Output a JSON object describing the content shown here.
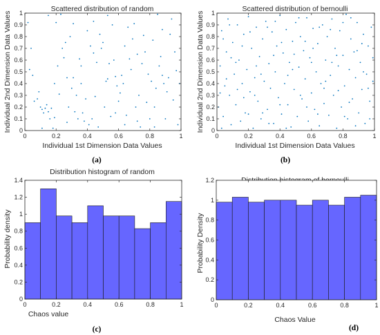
{
  "captions": [
    "(a)",
    "(b)",
    "(c)",
    "(d)"
  ],
  "chart_data": [
    {
      "type": "scatter",
      "title": "Scattered distribution of random",
      "xlabel": "Individual 1st Dimension Data Values",
      "ylabel": "Individual 2nd Dimension Data Values",
      "xlim": [
        0,
        1
      ],
      "ylim": [
        0,
        1
      ],
      "xticks": [
        "0",
        "0.2",
        "0.4",
        "0.6",
        "0.8",
        "1"
      ],
      "yticks": [
        "0",
        "0.1",
        "0.2",
        "0.3",
        "0.4",
        "0.5",
        "0.6",
        "0.7",
        "0.8",
        "0.9",
        "1"
      ],
      "marker_color": "#0072BD",
      "points": [
        [
          0.02,
          0.92
        ],
        [
          0.04,
          0.7
        ],
        [
          0.03,
          0.52
        ],
        [
          0.05,
          0.47
        ],
        [
          0.08,
          0.27
        ],
        [
          0.09,
          0.33
        ],
        [
          0.1,
          0.2
        ],
        [
          0.11,
          0.18
        ],
        [
          0.12,
          0.15
        ],
        [
          0.13,
          0.19
        ],
        [
          0.14,
          0.22
        ],
        [
          0.15,
          0.16
        ],
        [
          0.16,
          0.1
        ],
        [
          0.17,
          0.19
        ],
        [
          0.18,
          0.02
        ],
        [
          0.19,
          0.4
        ],
        [
          0.2,
          0.92
        ],
        [
          0.21,
          0.55
        ],
        [
          0.22,
          0.31
        ],
        [
          0.23,
          0.99
        ],
        [
          0.24,
          0.7
        ],
        [
          0.25,
          0.62
        ],
        [
          0.26,
          0.75
        ],
        [
          0.27,
          0.07
        ],
        [
          0.28,
          0.2
        ],
        [
          0.29,
          0.8
        ],
        [
          0.3,
          0.36
        ],
        [
          0.31,
          0.45
        ],
        [
          0.32,
          0.16
        ],
        [
          0.33,
          0.3
        ],
        [
          0.34,
          0.1
        ],
        [
          0.35,
          0.61
        ],
        [
          0.36,
          0.4
        ],
        [
          0.37,
          0.15
        ],
        [
          0.38,
          0.08
        ],
        [
          0.39,
          0.27
        ],
        [
          0.4,
          0.85
        ],
        [
          0.41,
          0.05
        ],
        [
          0.42,
          0.72
        ],
        [
          0.43,
          0.1
        ],
        [
          0.44,
          0.66
        ],
        [
          0.45,
          0.29
        ],
        [
          0.46,
          0.58
        ],
        [
          0.47,
          0.03
        ],
        [
          0.48,
          0.82
        ],
        [
          0.49,
          0.7
        ],
        [
          0.5,
          0.75
        ],
        [
          0.51,
          0.2
        ],
        [
          0.52,
          0.42
        ],
        [
          0.53,
          0.44
        ],
        [
          0.54,
          0.57
        ],
        [
          0.55,
          0.12
        ],
        [
          0.56,
          0.9
        ],
        [
          0.57,
          0.6
        ],
        [
          0.58,
          0.46
        ],
        [
          0.59,
          0.38
        ],
        [
          0.6,
          0.25
        ],
        [
          0.61,
          0.32
        ],
        [
          0.62,
          0.47
        ],
        [
          0.63,
          0.4
        ],
        [
          0.64,
          0.72
        ],
        [
          0.65,
          0.13
        ],
        [
          0.66,
          0.88
        ],
        [
          0.67,
          0.61
        ],
        [
          0.68,
          0.52
        ],
        [
          0.69,
          0.78
        ],
        [
          0.7,
          0.91
        ],
        [
          0.71,
          0.2
        ],
        [
          0.72,
          0.65
        ],
        [
          0.73,
          0.3
        ],
        [
          0.74,
          0.03
        ],
        [
          0.75,
          0.57
        ],
        [
          0.76,
          0.81
        ],
        [
          0.77,
          0.67
        ],
        [
          0.78,
          0.24
        ],
        [
          0.79,
          0.48
        ],
        [
          0.8,
          0.1
        ],
        [
          0.81,
          0.42
        ],
        [
          0.82,
          0.77
        ],
        [
          0.83,
          0.03
        ],
        [
          0.84,
          0.36
        ],
        [
          0.85,
          0.99
        ],
        [
          0.86,
          0.55
        ],
        [
          0.87,
          0.63
        ],
        [
          0.88,
          0.47
        ],
        [
          0.89,
          0.4
        ],
        [
          0.9,
          0.1
        ],
        [
          0.91,
          0.33
        ],
        [
          0.92,
          0.45
        ],
        [
          0.93,
          0.82
        ],
        [
          0.94,
          0.95
        ],
        [
          0.95,
          0.26
        ],
        [
          0.96,
          0.67
        ],
        [
          0.97,
          0.51
        ],
        [
          0.98,
          0.05
        ],
        [
          0.99,
          0.4
        ],
        [
          0.06,
          0.25
        ],
        [
          0.15,
          0.98
        ],
        [
          0.27,
          0.45
        ],
        [
          0.53,
          0.98
        ],
        [
          0.64,
          0.05
        ],
        [
          0.83,
          0.2
        ],
        [
          0.44,
          0.93
        ],
        [
          0.36,
          0.55
        ],
        [
          0.72,
          0.08
        ],
        [
          0.58,
          0.15
        ],
        [
          0.19,
          0.11
        ],
        [
          0.88,
          0.86
        ],
        [
          0.31,
          0.91
        ],
        [
          0.11,
          0.02
        ]
      ]
    },
    {
      "type": "scatter",
      "title": "Scattered distribution of bernoulli",
      "xlabel": "Individual 1st Dimension Data Values",
      "ylabel": "Individual 2nd Dimension Data Values",
      "xlim": [
        0,
        1
      ],
      "ylim": [
        0,
        1
      ],
      "xticks": [
        "0",
        "0.2",
        "0.4",
        "0.6",
        "0.8",
        "1"
      ],
      "yticks": [
        "0",
        "0.1",
        "0.2",
        "0.3",
        "0.4",
        "0.5",
        "0.6",
        "0.7",
        "0.8",
        "0.9",
        "1"
      ],
      "marker_color": "#0072BD",
      "points": [
        [
          0.01,
          0.2
        ],
        [
          0.02,
          0.55
        ],
        [
          0.03,
          0.85
        ],
        [
          0.04,
          0.12
        ],
        [
          0.05,
          0.38
        ],
        [
          0.06,
          0.67
        ],
        [
          0.07,
          0.95
        ],
        [
          0.08,
          0.3
        ],
        [
          0.09,
          0.05
        ],
        [
          0.1,
          0.75
        ],
        [
          0.11,
          0.48
        ],
        [
          0.12,
          0.22
        ],
        [
          0.13,
          0.9
        ],
        [
          0.14,
          0.6
        ],
        [
          0.15,
          0.08
        ],
        [
          0.16,
          0.4
        ],
        [
          0.17,
          0.82
        ],
        [
          0.18,
          0.15
        ],
        [
          0.19,
          0.52
        ],
        [
          0.2,
          0.97
        ],
        [
          0.21,
          0.33
        ],
        [
          0.22,
          0.7
        ],
        [
          0.23,
          0.02
        ],
        [
          0.24,
          0.45
        ],
        [
          0.25,
          0.88
        ],
        [
          0.26,
          0.25
        ],
        [
          0.27,
          0.63
        ],
        [
          0.28,
          0.1
        ],
        [
          0.29,
          0.78
        ],
        [
          0.3,
          0.42
        ],
        [
          0.31,
          0.93
        ],
        [
          0.32,
          0.18
        ],
        [
          0.33,
          0.57
        ],
        [
          0.34,
          0.36
        ],
        [
          0.35,
          0.84
        ],
        [
          0.36,
          0.06
        ],
        [
          0.37,
          0.5
        ],
        [
          0.38,
          0.72
        ],
        [
          0.39,
          0.28
        ],
        [
          0.4,
          0.98
        ],
        [
          0.41,
          0.14
        ],
        [
          0.42,
          0.66
        ],
        [
          0.43,
          0.4
        ],
        [
          0.44,
          0.86
        ],
        [
          0.45,
          0.22
        ],
        [
          0.46,
          0.58
        ],
        [
          0.47,
          0.03
        ],
        [
          0.48,
          0.76
        ],
        [
          0.49,
          0.35
        ],
        [
          0.5,
          0.92
        ],
        [
          0.51,
          0.12
        ],
        [
          0.52,
          0.54
        ],
        [
          0.53,
          0.8
        ],
        [
          0.54,
          0.27
        ],
        [
          0.55,
          0.68
        ],
        [
          0.56,
          0.44
        ],
        [
          0.57,
          0.96
        ],
        [
          0.58,
          0.08
        ],
        [
          0.59,
          0.62
        ],
        [
          0.6,
          0.32
        ],
        [
          0.61,
          0.87
        ],
        [
          0.62,
          0.18
        ],
        [
          0.63,
          0.5
        ],
        [
          0.64,
          0.74
        ],
        [
          0.65,
          0.04
        ],
        [
          0.66,
          0.4
        ],
        [
          0.67,
          0.9
        ],
        [
          0.68,
          0.23
        ],
        [
          0.69,
          0.6
        ],
        [
          0.7,
          0.8
        ],
        [
          0.71,
          0.13
        ],
        [
          0.72,
          0.47
        ],
        [
          0.73,
          0.95
        ],
        [
          0.74,
          0.3
        ],
        [
          0.75,
          0.7
        ],
        [
          0.76,
          0.02
        ],
        [
          0.77,
          0.55
        ],
        [
          0.78,
          0.85
        ],
        [
          0.79,
          0.2
        ],
        [
          0.8,
          0.64
        ],
        [
          0.81,
          0.38
        ],
        [
          0.82,
          0.99
        ],
        [
          0.83,
          0.1
        ],
        [
          0.84,
          0.52
        ],
        [
          0.85,
          0.78
        ],
        [
          0.86,
          0.27
        ],
        [
          0.87,
          0.67
        ],
        [
          0.88,
          0.45
        ],
        [
          0.89,
          0.92
        ],
        [
          0.9,
          0.15
        ],
        [
          0.91,
          0.58
        ],
        [
          0.92,
          0.35
        ],
        [
          0.93,
          0.82
        ],
        [
          0.94,
          0.06
        ],
        [
          0.95,
          0.48
        ],
        [
          0.96,
          0.72
        ],
        [
          0.97,
          0.25
        ],
        [
          0.98,
          0.88
        ],
        [
          0.99,
          0.42
        ],
        [
          0.02,
          0.32
        ],
        [
          0.06,
          0.44
        ],
        [
          0.09,
          0.62
        ],
        [
          0.13,
          0.35
        ],
        [
          0.17,
          0.28
        ],
        [
          0.21,
          0.84
        ],
        [
          0.25,
          0.55
        ],
        [
          0.29,
          0.15
        ],
        [
          0.33,
          0.06
        ],
        [
          0.37,
          0.93
        ],
        [
          0.41,
          0.75
        ],
        [
          0.45,
          0.47
        ],
        [
          0.49,
          0.65
        ],
        [
          0.53,
          0.3
        ],
        [
          0.57,
          0.2
        ],
        [
          0.61,
          0.7
        ],
        [
          0.65,
          0.88
        ],
        [
          0.69,
          0.42
        ],
        [
          0.73,
          0.58
        ],
        [
          0.77,
          0.34
        ],
        [
          0.81,
          0.12
        ],
        [
          0.85,
          0.96
        ],
        [
          0.89,
          0.68
        ],
        [
          0.93,
          0.5
        ],
        [
          0.97,
          0.1
        ],
        [
          0.04,
          0.78
        ],
        [
          0.08,
          0.9
        ],
        [
          0.12,
          0.58
        ],
        [
          0.16,
          0.72
        ],
        [
          0.2,
          0.14
        ],
        [
          0.24,
          0.3
        ],
        [
          0.28,
          0.48
        ],
        [
          0.32,
          0.88
        ],
        [
          0.36,
          0.64
        ],
        [
          0.4,
          0.22
        ],
        [
          0.44,
          0.02
        ],
        [
          0.48,
          0.52
        ],
        [
          0.52,
          0.96
        ],
        [
          0.56,
          0.76
        ],
        [
          0.6,
          0.58
        ],
        [
          0.64,
          0.14
        ],
        [
          0.68,
          0.36
        ],
        [
          0.72,
          0.86
        ],
        [
          0.76,
          0.64
        ],
        [
          0.8,
          0.92
        ],
        [
          0.84,
          0.24
        ],
        [
          0.88,
          0.04
        ],
        [
          0.92,
          0.74
        ],
        [
          0.96,
          0.36
        ],
        [
          0.99,
          0.62
        ],
        [
          0.03,
          0.02
        ]
      ]
    },
    {
      "type": "bar",
      "title": "Distribution histogram of random",
      "xlabel": "Chaos value",
      "ylabel": "Probability density",
      "xlim": [
        0,
        1
      ],
      "ylim": [
        0,
        1.4
      ],
      "xticks": [
        "0",
        "0.2",
        "0.4",
        "0.6",
        "0.8",
        "1"
      ],
      "yticks": [
        "0",
        "0.2",
        "0.4",
        "0.6",
        "0.8",
        "1",
        "1.2",
        "1.4"
      ],
      "bin_edges": [
        0,
        0.1,
        0.2,
        0.3,
        0.4,
        0.5,
        0.6,
        0.7,
        0.8,
        0.9,
        1.0
      ],
      "values": [
        0.9,
        1.3,
        0.98,
        0.9,
        1.1,
        0.98,
        0.98,
        0.83,
        0.9,
        1.15
      ],
      "bar_color": "#6666FF"
    },
    {
      "type": "bar",
      "title": "Distribution histogram of bernoulli",
      "xlabel": "Chaos Value",
      "ylabel": "Probability Density",
      "xlim": [
        0,
        1
      ],
      "ylim": [
        0,
        1.2
      ],
      "xticks": [
        "0",
        "0.2",
        "0.4",
        "0.6",
        "0.8",
        "1"
      ],
      "yticks": [
        "0",
        "0.2",
        "0.4",
        "0.6",
        "0.8",
        "1",
        "1.2"
      ],
      "bin_edges": [
        0,
        0.1,
        0.2,
        0.3,
        0.4,
        0.5,
        0.6,
        0.7,
        0.8,
        0.9,
        1.0
      ],
      "values": [
        0.98,
        1.03,
        0.98,
        1.0,
        1.0,
        0.95,
        1.0,
        0.95,
        1.03,
        1.05
      ],
      "bar_color": "#6666FF"
    }
  ]
}
